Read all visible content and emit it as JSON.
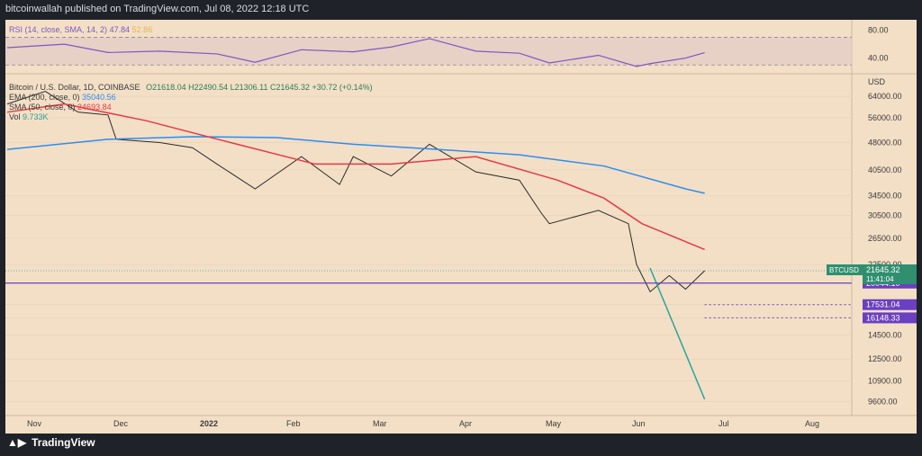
{
  "header": "bitcoinwallah published on TradingView.com, Jul 08, 2022 12:18 UTC",
  "footer": {
    "logo": "TradingView"
  },
  "legend": {
    "rsi_label": "RSI (14, close, SMA, 14, 2)",
    "rsi_value": "47.84",
    "rsi_sma": "52.86",
    "main_title": "Bitcoin / U.S. Dollar, 1D, COINBASE",
    "ohlc": "O21618.04 H22490.54 L21306.11 C21645.32 +30.72 (+0.14%)",
    "ema_label": "EMA (200, close, 0)",
    "ema_value": "35040.56",
    "sma_label": "SMA (50, close, 0)",
    "sma_value": "24693.84",
    "vol_label": "Vol",
    "vol_value": "9.733K"
  },
  "colors": {
    "bg": "#f3dfc6",
    "up": "#26a69a",
    "down": "#ef5350",
    "ema": "#2d8cf0",
    "sma": "#e63946",
    "rsi": "#7e57c2",
    "level": "#6a3fc0",
    "grid": "#e6d2b8"
  },
  "chart_data": [
    {
      "type": "line",
      "title": "RSI (14, close, SMA, 14, 2)",
      "ylim": [
        20,
        90
      ],
      "yticks": [
        40,
        80
      ],
      "yticklabels": [
        "40.00",
        "80.00"
      ],
      "series": [
        {
          "name": "RSI",
          "x": [
            "Oct 25",
            "Nov 15",
            "Dec 1",
            "Dec 20",
            "Jan 10",
            "Jan 24",
            "Feb 10",
            "Mar 1",
            "Mar 15",
            "Mar 29",
            "Apr 15",
            "May 1",
            "May 12",
            "May 30",
            "Jun 13",
            "Jun 18",
            "Jul 1",
            "Jul 8"
          ],
          "values": [
            55,
            60,
            48,
            50,
            46,
            34,
            52,
            49,
            56,
            68,
            50,
            47,
            33,
            44,
            28,
            32,
            40,
            47.84
          ]
        }
      ]
    },
    {
      "type": "candlestick",
      "title": "Bitcoin / U.S. Dollar, 1D, COINBASE",
      "ylabel": "USD",
      "yticks": [
        9600,
        10900,
        12500,
        14500,
        16148.33,
        17531.04,
        20044.1,
        22500,
        26500,
        30500,
        34500,
        40500,
        48000,
        56000,
        64000
      ],
      "yticklabels": [
        "9600.00",
        "10900.00",
        "12500.00",
        "14500.00",
        "16148.33",
        "17531.04",
        "20044.10",
        "22500.00",
        "26500.00",
        "30500.00",
        "34500.00",
        "40500.00",
        "48000.00",
        "56000.00",
        "64000.00"
      ],
      "xticklabels": [
        "Nov",
        "Dec",
        "2022",
        "Feb",
        "Mar",
        "Apr",
        "May",
        "Jun",
        "Jul",
        "Aug"
      ],
      "series": [
        {
          "name": "Bitcoin / U.S. Dollar",
          "x": [
            "Oct 25",
            "Nov 8",
            "Nov 20",
            "Dec 1",
            "Dec 4",
            "Dec 20",
            "Jan 1",
            "Jan 10",
            "Jan 24",
            "Feb 10",
            "Feb 24",
            "Mar 1",
            "Mar 15",
            "Mar 29",
            "Apr 15",
            "May 1",
            "May 9",
            "May 12",
            "May 30",
            "Jun 10",
            "Jun 13",
            "Jun 18",
            "Jun 25",
            "Jul 1",
            "Jul 8"
          ],
          "values": [
            61000,
            66000,
            58000,
            57000,
            49000,
            48000,
            46500,
            42000,
            36000,
            44000,
            37000,
            44000,
            39000,
            47500,
            40000,
            38000,
            31000,
            29000,
            31500,
            29000,
            22500,
            19000,
            21000,
            19300,
            21645.32
          ]
        },
        {
          "name": "EMA (200, close, 0)",
          "x": [
            "Oct 25",
            "Dec 1",
            "Jan 1",
            "Feb 1",
            "Mar 1",
            "Apr 1",
            "May 1",
            "Jun 1",
            "Jul 1",
            "Jul 8"
          ],
          "values": [
            46000,
            49000,
            49800,
            49500,
            47500,
            46000,
            44500,
            41500,
            36000,
            35040.56
          ]
        },
        {
          "name": "SMA (50, close, 0)",
          "x": [
            "Oct 25",
            "Nov 15",
            "Dec 15",
            "Jan 15",
            "Feb 15",
            "Mar 15",
            "Apr 15",
            "May 15",
            "Jun 1",
            "Jun 15",
            "Jul 8"
          ],
          "values": [
            58000,
            61000,
            55000,
            48000,
            42000,
            42000,
            44000,
            38000,
            34000,
            29000,
            24693.84
          ]
        },
        {
          "name": "Vol",
          "x": [
            "Jun 18",
            "Jul 8"
          ],
          "values": [
            22000,
            9733
          ]
        }
      ],
      "price_label": {
        "label": "BTCUSD",
        "value": "21645.32",
        "time": "11:41:04"
      },
      "levels": [
        "20044.10",
        "17531.04",
        "16148.33"
      ]
    }
  ]
}
